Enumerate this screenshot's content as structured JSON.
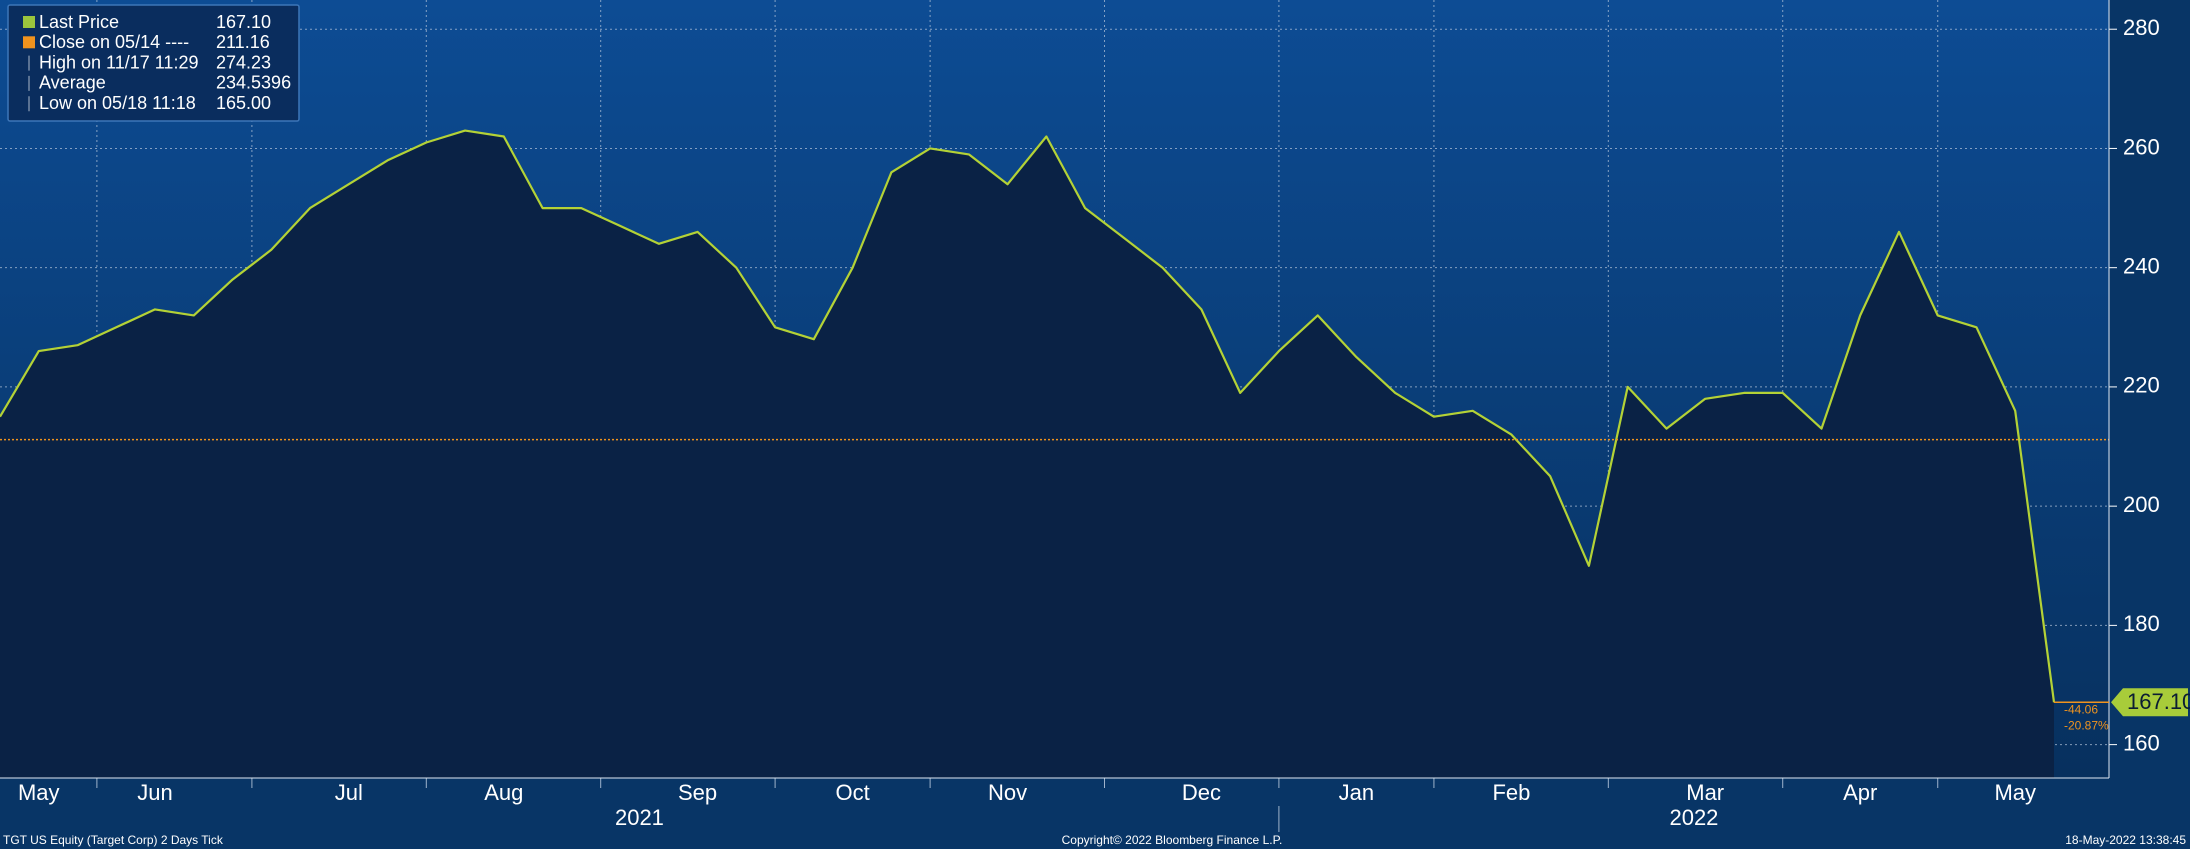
{
  "chart_data": {
    "type": "area",
    "categories": [
      null,
      "May",
      null,
      null,
      "Jun",
      null,
      null,
      null,
      null,
      "Jul",
      null,
      null,
      null,
      "Aug",
      null,
      null,
      null,
      null,
      "Sep",
      null,
      null,
      null,
      "Oct",
      null,
      null,
      null,
      "Nov",
      null,
      null,
      null,
      null,
      "Dec",
      null,
      null,
      null,
      "Jan",
      null,
      null,
      null,
      "Feb",
      null,
      null,
      null,
      null,
      "Mar",
      null,
      null,
      null,
      "Apr",
      null,
      null,
      null,
      "May",
      null
    ],
    "values": [
      215,
      226,
      227,
      230,
      233,
      232,
      238,
      243,
      250,
      254,
      258,
      261,
      263,
      262,
      250,
      250,
      247,
      244,
      246,
      240,
      230,
      228,
      240,
      256,
      260,
      259,
      254,
      262,
      250,
      245,
      240,
      233,
      219,
      226,
      232,
      225,
      219,
      215,
      216,
      212,
      205,
      190,
      220,
      213,
      218,
      219,
      219,
      213,
      232,
      246,
      232,
      230,
      216,
      167.1
    ],
    "color": "#b4d236",
    "years": [
      "2021",
      "2022"
    ],
    "ylim": [
      154.4,
      284.9
    ],
    "yticks": [
      160,
      180,
      200,
      220,
      240,
      260,
      280
    ],
    "grid": true,
    "stats": [
      {
        "name": "Last Price",
        "value": 167.1,
        "label": "167.10",
        "color": "#9bc53d"
      },
      {
        "name": "Close on 05/14 ----",
        "value": 211.16,
        "color": "#f0931e"
      },
      {
        "name": "High on 11/17 11:29",
        "value": 274.23
      },
      {
        "name": "Average",
        "value": 234.5396
      },
      {
        "name": "Low on 05/18 11:18",
        "value": 165,
        "label": "165.00"
      }
    ],
    "change": {
      "value": -44.06,
      "percent": {
        "value": -20.87,
        "label": "-20.87%"
      }
    },
    "footer": {
      "left": "TGT US Equity (Target Corp) 2 Days  Tick",
      "center": "Copyright© 2022 Bloomberg Finance L.P.",
      "right": "18-May-2022 13:38:45"
    }
  }
}
